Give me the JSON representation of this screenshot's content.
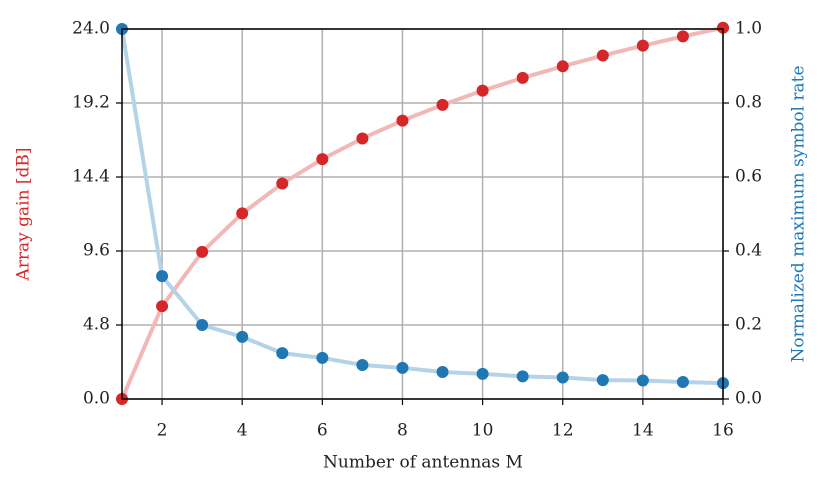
{
  "chart_data": {
    "type": "line",
    "xlabel": "Number of antennas M",
    "ylabel": "Array gain [dB]",
    "y2label": "Normalized maximum symbol rate",
    "x": [
      1,
      2,
      3,
      4,
      5,
      6,
      7,
      8,
      9,
      10,
      11,
      12,
      13,
      14,
      15,
      16
    ],
    "series": [
      {
        "name": "Array gain",
        "color": "#d62728",
        "line_color": "#f2b8b8",
        "axis": "y",
        "values": [
          0.0,
          6.02,
          9.54,
          12.04,
          13.98,
          15.56,
          16.9,
          18.06,
          19.08,
          20.0,
          20.83,
          21.58,
          22.28,
          22.92,
          23.52,
          24.08
        ]
      },
      {
        "name": "Normalized maximum symbol rate",
        "color": "#1f77b4",
        "line_color": "#b5d3e8",
        "axis": "y2",
        "values": [
          1.0,
          0.332,
          0.2,
          0.168,
          0.124,
          0.111,
          0.092,
          0.084,
          0.073,
          0.068,
          0.061,
          0.058,
          0.051,
          0.05,
          0.046,
          0.043
        ]
      }
    ],
    "xlim": [
      1,
      16
    ],
    "xticks": [
      2,
      4,
      6,
      8,
      10,
      12,
      14,
      16
    ],
    "ylim": [
      0,
      24
    ],
    "yticks": [
      {
        "value": 0,
        "label": "0.0"
      },
      {
        "value": 4.8,
        "label": "4.8"
      },
      {
        "value": 9.6,
        "label": "9.6"
      },
      {
        "value": 14.4,
        "label": "14.4"
      },
      {
        "value": 19.2,
        "label": "19.2"
      },
      {
        "value": 24,
        "label": "24.0"
      }
    ],
    "y2lim": [
      0,
      1
    ],
    "y2ticks": [
      {
        "value": 0,
        "label": "0.0"
      },
      {
        "value": 0.2,
        "label": "0.2"
      },
      {
        "value": 0.4,
        "label": "0.4"
      },
      {
        "value": 0.6,
        "label": "0.6"
      },
      {
        "value": 0.8,
        "label": "0.8"
      },
      {
        "value": 1,
        "label": "1.0"
      }
    ],
    "ylabel_color": "#d62728",
    "y2label_color": "#1f77b4",
    "grid": true
  }
}
